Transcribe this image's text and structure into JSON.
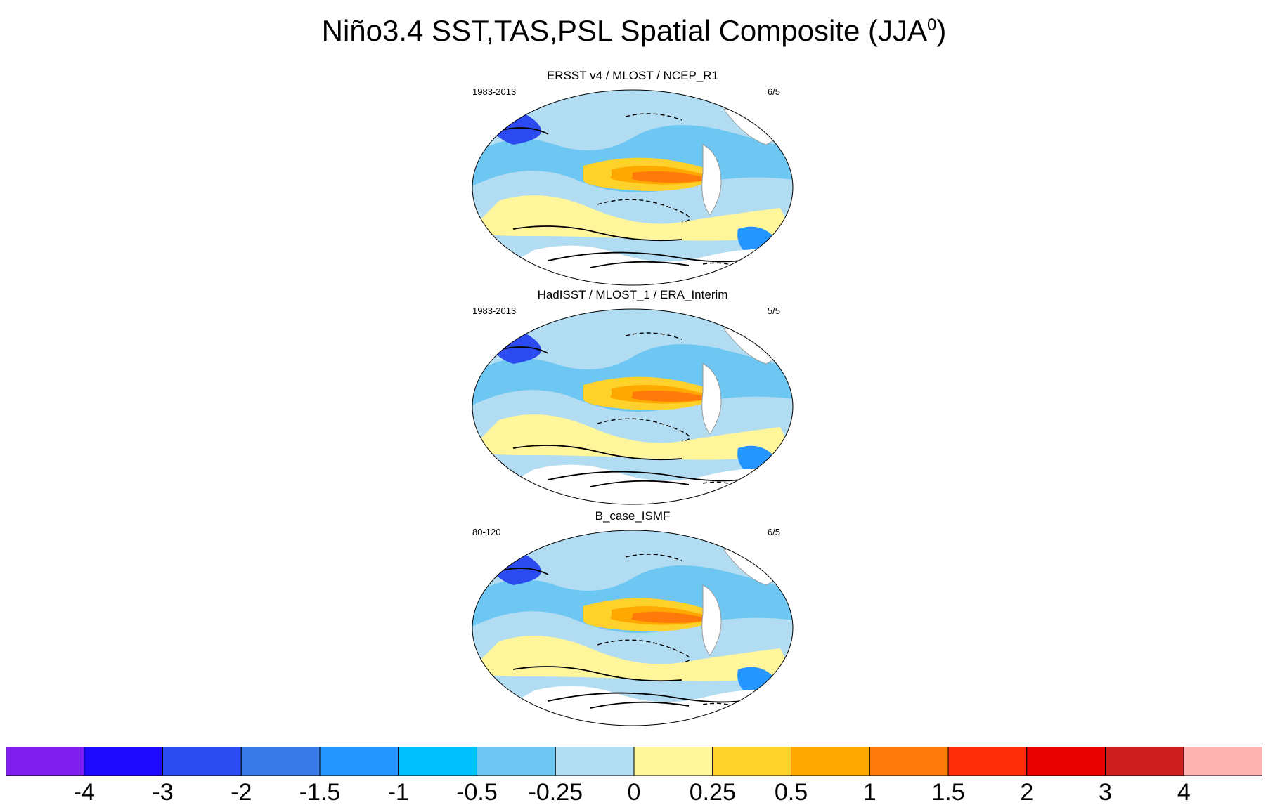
{
  "figure": {
    "title": "Niño3.4 SST,TAS,PSL Spatial Composite (JJA",
    "title_sup": "0",
    "title_close": ")"
  },
  "panels": [
    {
      "title": "ERSST v4 / MLOST / NCEP_R1",
      "left_label": "1983-2013",
      "right_label": "6/5"
    },
    {
      "title": "HadISST / MLOST_1 / ERA_Interim",
      "left_label": "1983-2013",
      "right_label": "5/5"
    },
    {
      "title": "B_case_ISMF",
      "left_label": "80-120",
      "right_label": "6/5"
    }
  ],
  "colorbar": {
    "levels": [
      "-4",
      "-3",
      "-2",
      "-1.5",
      "-1",
      "-0.5",
      "-0.25",
      "0",
      "0.25",
      "0.5",
      "1",
      "1.5",
      "2",
      "3",
      "4"
    ],
    "colors": [
      "#7f1fef",
      "#1e0aff",
      "#2b4af0",
      "#3a7ae8",
      "#2596ff",
      "#00bfff",
      "#6ec6f2",
      "#b1dcf2",
      "#fff59b",
      "#ffd12b",
      "#ffa800",
      "#ff7a0a",
      "#ff2c0a",
      "#e80000",
      "#cf1e1e",
      "#ffb4b4"
    ]
  },
  "colors": {
    "land_white": "#ffffff",
    "coast": "#9a9a9a",
    "contour": "#000000"
  }
}
